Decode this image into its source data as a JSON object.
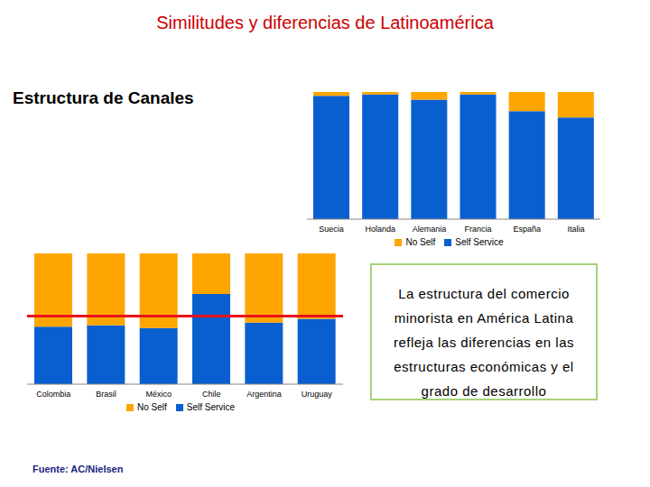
{
  "title": "Similitudes y diferencias de Latinoamérica",
  "subtitle": "Estructura de Canales",
  "annotation": "La estructura del comercio minorista en América Latina refleja las diferencias en las estructuras económicas y el grado de desarrollo",
  "source": "Fuente: AC/Nielsen",
  "chart_data": [
    {
      "type": "bar",
      "stacked": true,
      "categories": [
        "Suecia",
        "Holanda",
        "Alemania",
        "Francia",
        "España",
        "Italia"
      ],
      "series": [
        {
          "name": "Self Service",
          "color": "#0a5fd0",
          "values": [
            97,
            98,
            94,
            98,
            85,
            80
          ]
        },
        {
          "name": "No Self",
          "color": "#ffa500",
          "values": [
            3,
            2,
            6,
            2,
            15,
            20
          ]
        }
      ],
      "ylim": [
        0,
        100
      ],
      "tick_labels": "x",
      "legend": "bottom"
    },
    {
      "type": "bar",
      "stacked": true,
      "categories": [
        "Colombia",
        "Brasil",
        "México",
        "Chile",
        "Argentina",
        "Uruguay"
      ],
      "series": [
        {
          "name": "Self Service",
          "color": "#0a5fd0",
          "values": [
            44,
            45,
            43,
            69,
            47,
            50
          ]
        },
        {
          "name": "No Self",
          "color": "#ffa500",
          "values": [
            56,
            55,
            57,
            31,
            53,
            50
          ]
        }
      ],
      "ylim": [
        0,
        100
      ],
      "tick_labels": "x",
      "legend": "bottom",
      "reference_line": {
        "value": 52,
        "color": "#e8141b"
      }
    }
  ]
}
